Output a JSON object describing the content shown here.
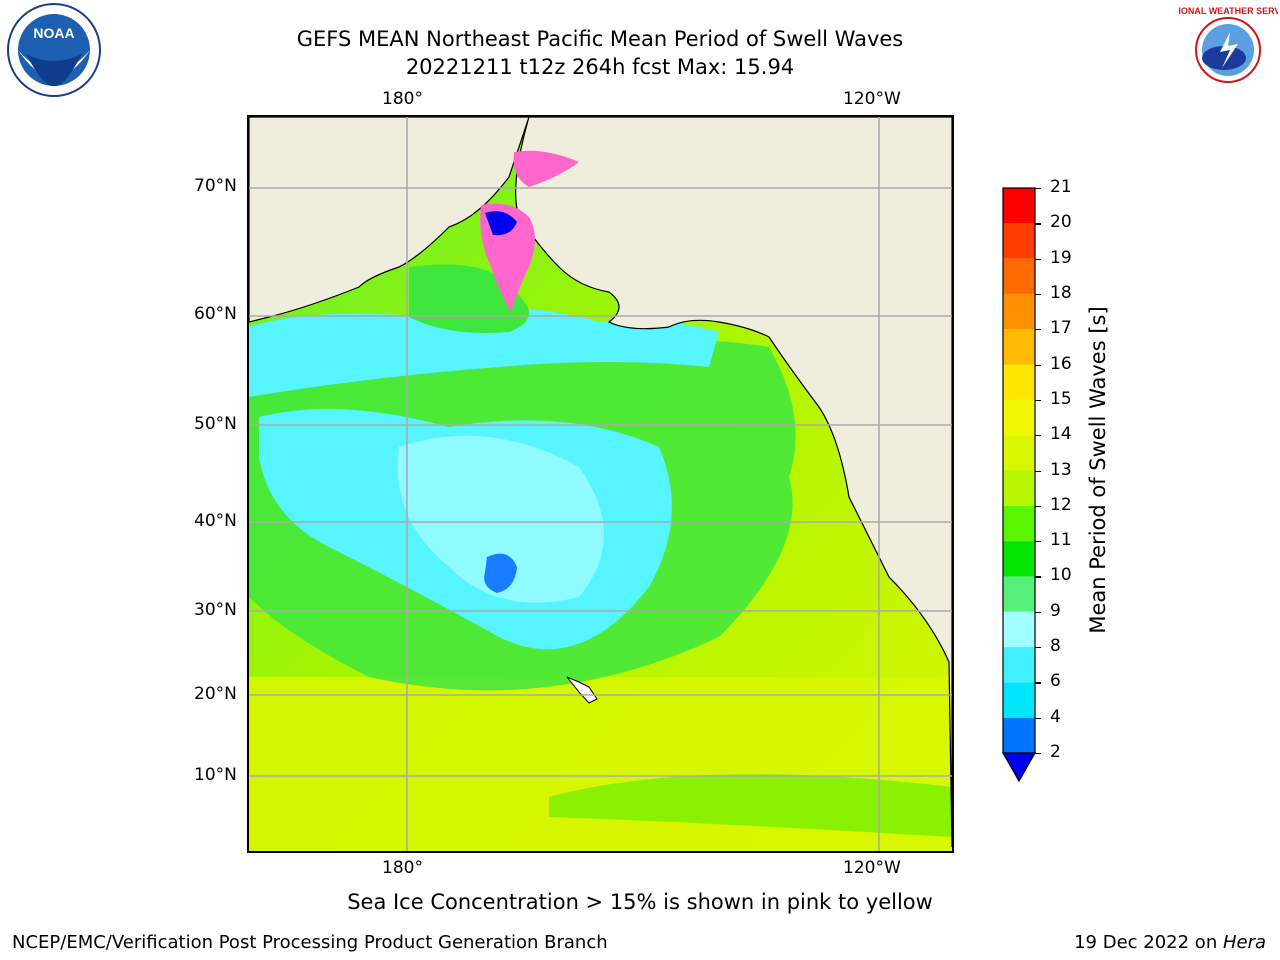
{
  "title": {
    "line1": "GEFS MEAN Northeast Pacific Mean Period of Swell Waves",
    "line2": "20221211 t12z 264h fcst   Max: 15.94"
  },
  "map": {
    "region": "Northeast Pacific",
    "lon_labels_top": [
      "180°",
      "120°W"
    ],
    "lon_labels_bottom": [
      "180°",
      "120°W"
    ],
    "lat_labels": [
      "70°N",
      "60°N",
      "50°N",
      "40°N",
      "30°N",
      "20°N",
      "10°N"
    ],
    "max_value": 15.94
  },
  "colorbar": {
    "label": "Mean Period of Swell Waves [s]",
    "ticks": [
      "2",
      "4",
      "6",
      "8",
      "9",
      "10",
      "11",
      "12",
      "13",
      "14",
      "15",
      "16",
      "17",
      "18",
      "19",
      "20",
      "21"
    ],
    "colors": [
      "#0073ff",
      "#00e6ff",
      "#40f0ff",
      "#a0ffff",
      "#55f07a",
      "#00e600",
      "#5cf500",
      "#b8f500",
      "#d8f700",
      "#f0f700",
      "#ffe600",
      "#ffbb00",
      "#ff9100",
      "#ff6a00",
      "#ff3c00",
      "#ff0000"
    ],
    "extend_color": "#0000ee"
  },
  "notes": {
    "sea_ice": "Sea Ice Concentration > 15% is shown in pink to yellow"
  },
  "footer": {
    "left": "NCEP/EMC/Verification Post Processing Product Generation Branch",
    "right_prefix": "19 Dec 2022 on ",
    "right_machine": "Hera"
  },
  "logos": {
    "left": "NOAA",
    "right": "NATIONAL WEATHER SERVICE"
  }
}
